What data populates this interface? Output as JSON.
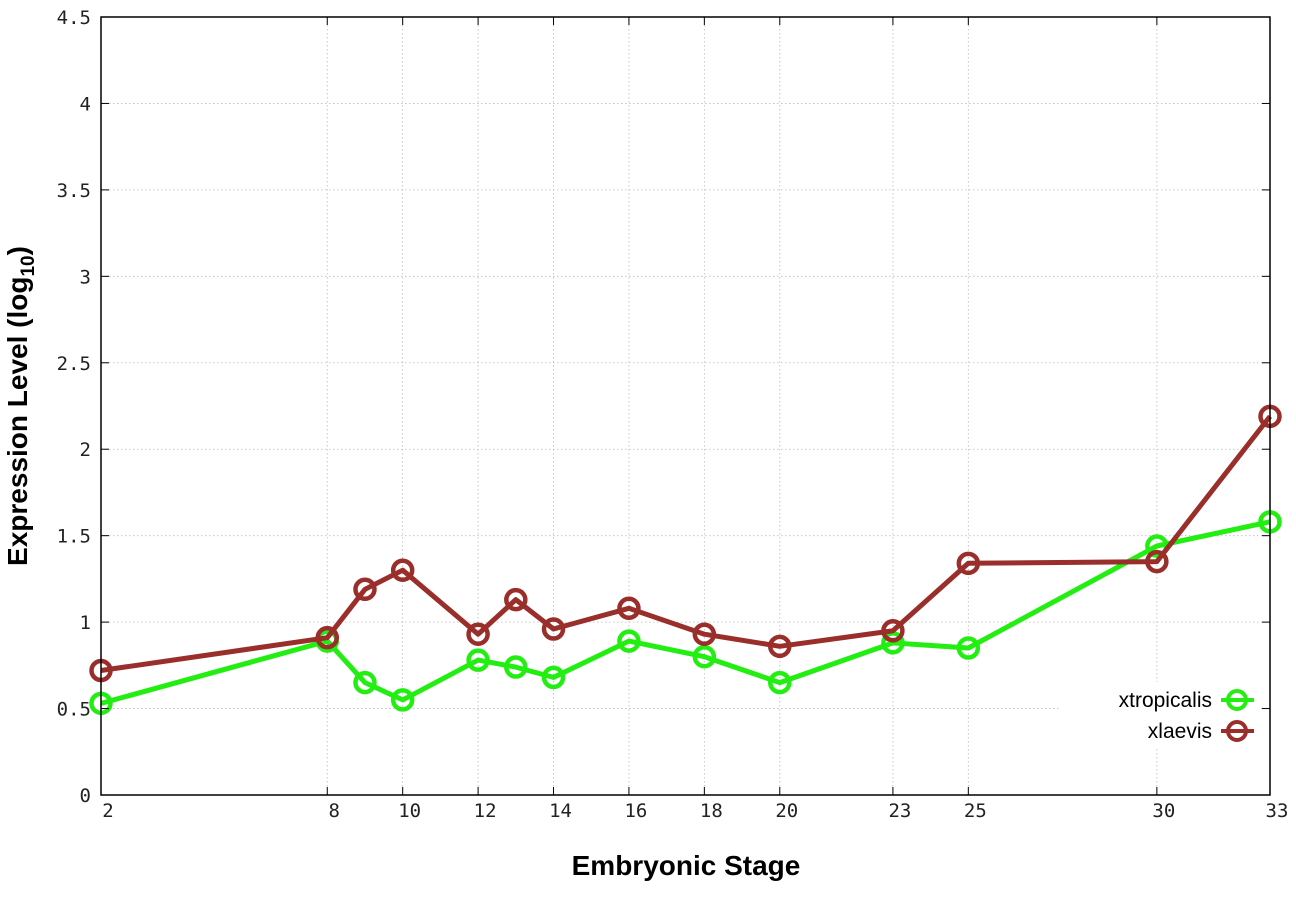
{
  "chart_data": {
    "type": "line",
    "xlabel": "Embryonic Stage",
    "ylabel_main": "Expression Level (log",
    "ylabel_sub": "10",
    "ylabel_close": ")",
    "x": [
      2,
      8,
      9,
      10,
      12,
      13,
      14,
      16,
      18,
      20,
      23,
      25,
      30,
      33
    ],
    "xticks": [
      2,
      8,
      10,
      12,
      14,
      16,
      18,
      20,
      23,
      25,
      30,
      33
    ],
    "xlim": [
      2,
      33
    ],
    "ylim": [
      0,
      4.5
    ],
    "yticks": [
      0,
      0.5,
      1,
      1.5,
      2,
      2.5,
      3,
      3.5,
      4,
      4.5
    ],
    "ytick_labels": [
      "0",
      "0.5",
      "1",
      "1.5",
      "2",
      "2.5",
      "3",
      "3.5",
      "4",
      "4.5"
    ],
    "grid": true,
    "legend_position": "bottom-right",
    "series": [
      {
        "name": "xtropicalis",
        "color": "#22ee11",
        "values": [
          0.53,
          0.89,
          0.65,
          0.55,
          0.78,
          0.74,
          0.68,
          0.89,
          0.8,
          0.65,
          0.88,
          0.85,
          1.44,
          1.58
        ]
      },
      {
        "name": "xlaevis",
        "color": "#992e2a",
        "values": [
          0.72,
          0.91,
          1.19,
          1.3,
          0.93,
          1.13,
          0.96,
          1.08,
          0.93,
          0.86,
          0.95,
          1.34,
          1.35,
          2.19
        ]
      }
    ]
  }
}
